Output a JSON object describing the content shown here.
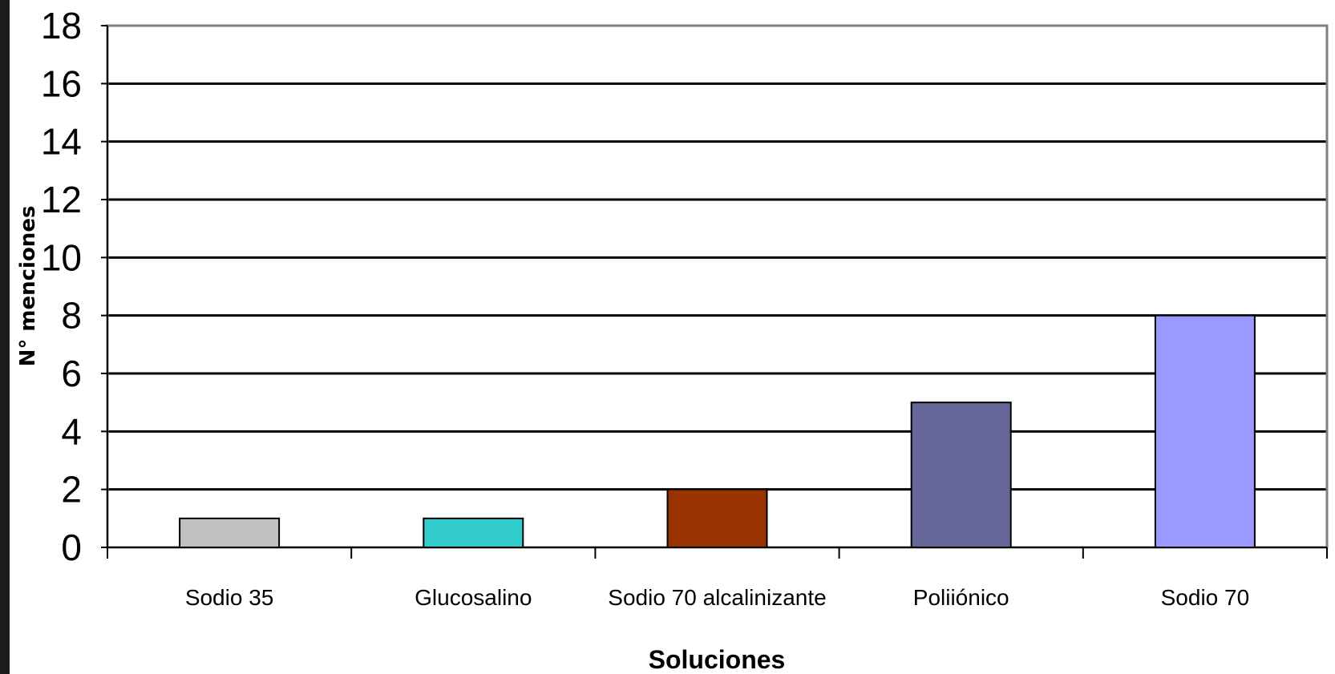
{
  "chart_data": {
    "type": "bar",
    "categories": [
      "Sodio 35",
      "Glucosalino",
      "Sodio 70 alcalinizante",
      "Poliiónico",
      "Sodio 70"
    ],
    "values": [
      1,
      1,
      2,
      5,
      8
    ],
    "bar_colors": [
      "#c0c0c0",
      "#33cccc",
      "#993300",
      "#666699",
      "#9999ff"
    ],
    "title": "",
    "xlabel": "Soluciones",
    "ylabel": "N° menciones",
    "ylim": [
      0,
      18
    ],
    "yticks": [
      "0",
      "2",
      "4",
      "6",
      "8",
      "10",
      "12",
      "14",
      "16",
      "18"
    ],
    "grid": true,
    "legend": "none"
  }
}
